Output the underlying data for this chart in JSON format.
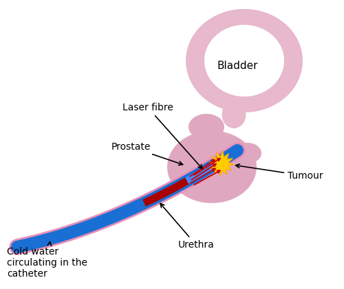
{
  "bg_color": "#ffffff",
  "bladder_color": "#e8b8cc",
  "prostate_color": "#e0a8c0",
  "catheter_blue": "#1a6fd4",
  "catheter_pink": "#e890b8",
  "laser_red": "#aa0000",
  "laser_blue": "#4488ff",
  "tumour_yellow": "#ffcc00",
  "tumour_orange": "#ffaa00",
  "red_arrow": "#cc0000",
  "text_color": "#000000",
  "arrow_lw": 1.2,
  "font_size": 10,
  "bladder_label": "Bladder",
  "laser_label": "Laser fibre",
  "prostate_label": "Prostate",
  "tumour_label": "Tumour",
  "urethra_label": "Urethra",
  "cold_water_label": "Cold water\ncirculating in the\ncatheter",
  "figsize": [
    5.0,
    4.19
  ],
  "dpi": 100
}
